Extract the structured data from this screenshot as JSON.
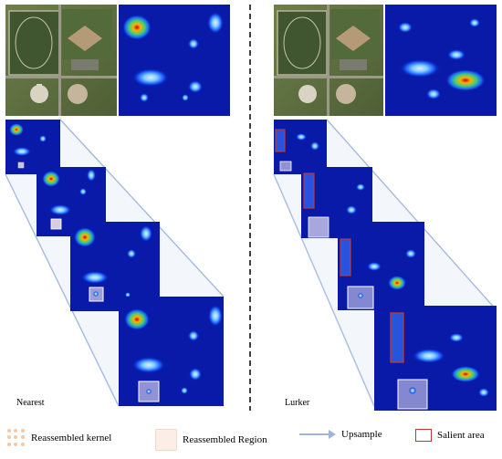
{
  "panels": {
    "left_label": "Nearest",
    "right_label": "Lurker"
  },
  "legend": {
    "kernel": "Reassembled kernel",
    "region": "Reassembled Region",
    "upsample": "Upsample",
    "salient": "Salient area"
  },
  "colors": {
    "heatmap_background": "#0a1aa8",
    "trapezoid_line": "#9fb6dc",
    "salient_border": "#c0392b",
    "region_fill": "#fbeee6",
    "kernel_dot": "#f3c9a6",
    "divider": "#000000"
  },
  "icons": {
    "kernel": "kernel-dots-icon",
    "region": "region-square-icon",
    "upsample": "arrow-right-icon",
    "salient": "red-box-icon"
  }
}
